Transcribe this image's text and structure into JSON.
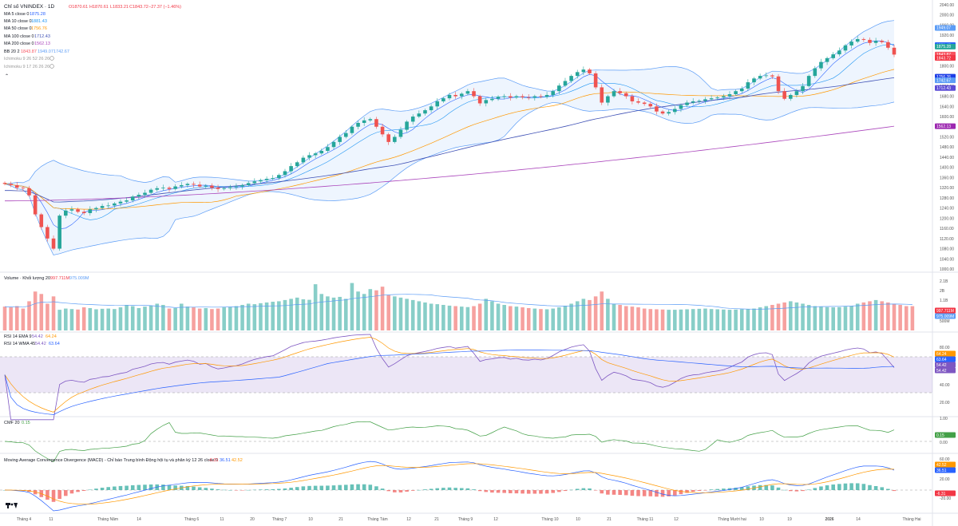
{
  "header": {
    "symbol_title": "Chỉ số VNINDEX · 1D",
    "ohlc": [
      "O1870.61",
      "H1870.61",
      "L1833.21",
      "C1843.72",
      "−27.37 (−1.46%)"
    ]
  },
  "legend": {
    "ma5": {
      "label": "MA 5 close 0",
      "value": "1875.28"
    },
    "ma10": {
      "label": "MA 10 close 0",
      "value": "1881.43"
    },
    "ma50": {
      "label": "MA 50 close 0",
      "value": "1756.76"
    },
    "ma100": {
      "label": "MA 100 close 0",
      "value": "1712.43"
    },
    "ma200": {
      "label": "MA 200 close 0",
      "value": "1562.13"
    },
    "bb": {
      "label": "BB 20 2",
      "v1": "1843.87",
      "v2": "1949.07",
      "v3": "1742.67"
    },
    "ichimoku1": "Ichimoku 9 26 52 26 26",
    "ichimoku2": "Ichimoku 9 17 26 26 26"
  },
  "volume_pane": {
    "label": "Volume · Khối lượng 20",
    "v1": "997.711M",
    "v2": "975.009M"
  },
  "rsi_pane": {
    "line1_label": "RSI 14 EMA 9",
    "line1_v1": "54.42",
    "line1_v2": "64.24",
    "line2_label": "RSI 14 WMA 45",
    "line2_v1": "54.42",
    "line2_v2": "63.64"
  },
  "cmf_pane": {
    "label": "CMF 20",
    "value": "0.15"
  },
  "macd_pane": {
    "label": "Moving Average Convergence Divergence (MACD) - Chỉ báo Trung bình Động hội tụ và phân kỳ 12 26 close 9",
    "v1": "-6.31",
    "v2": "36.51",
    "v3": "42.52"
  },
  "price_axis": [
    "2040.00",
    "2000.00",
    "1960.00",
    "1920.00",
    "1880.00",
    "1840.00",
    "1800.00",
    "1760.00",
    "1720.00",
    "1680.00",
    "1640.00",
    "1600.00",
    "1560.00",
    "1520.00",
    "1480.00",
    "1440.00",
    "1400.00",
    "1360.00",
    "1320.00",
    "1280.00",
    "1240.00",
    "1200.00",
    "1160.00",
    "1120.00",
    "1080.00",
    "1040.00",
    "1000.00"
  ],
  "price_tags": [
    {
      "value": "1949.07",
      "color": "#5b9cf6"
    },
    {
      "value": "1881.43",
      "color": "#2962ff"
    },
    {
      "value": "1875.28",
      "color": "#26a69a"
    },
    {
      "value": "1843.87",
      "color": "#f7525f"
    },
    {
      "value": "1843.72",
      "color": "#f23645"
    },
    {
      "value": "1756.76",
      "color": "#1e3ee6"
    },
    {
      "value": "1742.67",
      "color": "#5b9cf6"
    },
    {
      "value": "1712.43",
      "color": "#5b4bd6"
    },
    {
      "value": "1562.13",
      "color": "#9c27b0"
    }
  ],
  "volume_axis": [
    "2.1B",
    "2B",
    "1.1B",
    "500M"
  ],
  "volume_tags": [
    {
      "value": "997.711M",
      "color": "#f23645"
    },
    {
      "value": "975.009M",
      "color": "#5b9cf6"
    }
  ],
  "rsi_axis": [
    "80.00",
    "60.00",
    "40.00",
    "20.00"
  ],
  "rsi_tags": [
    {
      "value": "64.24",
      "color": "#ff9800"
    },
    {
      "value": "63.64",
      "color": "#2962ff"
    },
    {
      "value": "54.42",
      "color": "#7e57c2"
    },
    {
      "value": "54.42",
      "color": "#7e57c2"
    }
  ],
  "cmf_axis": [
    "1.00",
    "0.00"
  ],
  "cmf_tag": {
    "value": "0.15",
    "color": "#43a047"
  },
  "macd_axis": [
    "60.00",
    "40.00",
    "20.00",
    "-20.00"
  ],
  "macd_tags": [
    {
      "value": "42.52",
      "color": "#ff9800"
    },
    {
      "value": "36.51",
      "color": "#2962ff"
    },
    {
      "value": "-6.31",
      "color": "#f23645"
    }
  ],
  "time_axis": [
    "Tháng 4",
    "11",
    "Tháng Năm",
    "14",
    "Tháng 6",
    "11",
    "20",
    "Tháng 7",
    "10",
    "21",
    "Tháng Tám",
    "12",
    "21",
    "Tháng 9",
    "12",
    "Tháng 10",
    "10",
    "21",
    "Tháng 11",
    "12",
    "Tháng Mười hai",
    "10",
    "19",
    "2026",
    "14",
    "Tháng Hai"
  ],
  "colors": {
    "up": "#26a69a",
    "down": "#ef5350",
    "ma5": "#2962ff",
    "ma10": "#2196f3",
    "ma50": "#ff9800",
    "ma100": "#3f51b5",
    "ma200": "#ab47bc",
    "bb": "#5b9cf6",
    "rsi_band": "#7e57c2",
    "cmf": "#43a047",
    "macd": "#2962ff",
    "signal": "#ff9800"
  },
  "chart_data": [
    {
      "type": "candlestick",
      "title": "Chỉ số VNINDEX · 1D",
      "ylim": [
        1000,
        2040
      ],
      "close": [
        1335,
        1330,
        1320,
        1318,
        1290,
        1215,
        1165,
        1120,
        1080,
        1210,
        1230,
        1235,
        1225,
        1220,
        1235,
        1240,
        1248,
        1250,
        1258,
        1265,
        1270,
        1285,
        1292,
        1300,
        1312,
        1318,
        1320,
        1315,
        1325,
        1330,
        1335,
        1332,
        1325,
        1328,
        1320,
        1315,
        1318,
        1322,
        1325,
        1330,
        1338,
        1345,
        1350,
        1355,
        1358,
        1370,
        1385,
        1405,
        1420,
        1438,
        1448,
        1455,
        1465,
        1480,
        1500,
        1520,
        1535,
        1560,
        1575,
        1585,
        1590,
        1560,
        1530,
        1500,
        1520,
        1548,
        1580,
        1600,
        1612,
        1625,
        1640,
        1660,
        1672,
        1685,
        1680,
        1690,
        1700,
        1680,
        1652,
        1665,
        1670,
        1678,
        1680,
        1675,
        1680,
        1676,
        1675,
        1680,
        1678,
        1685,
        1700,
        1722,
        1740,
        1760,
        1775,
        1785,
        1770,
        1715,
        1655,
        1680,
        1700,
        1692,
        1680,
        1660,
        1655,
        1650,
        1640,
        1620,
        1612,
        1618,
        1630,
        1645,
        1655,
        1660,
        1662,
        1668,
        1672,
        1675,
        1680,
        1688,
        1700,
        1710,
        1735,
        1750,
        1760,
        1762,
        1758,
        1700,
        1670,
        1685,
        1700,
        1720,
        1760,
        1790,
        1815,
        1830,
        1845,
        1860,
        1880,
        1895,
        1905,
        1902,
        1890,
        1898,
        1893,
        1871,
        1844
      ],
      "volume_millions": [
        980,
        950,
        1000,
        900,
        1200,
        1600,
        1500,
        1100,
        1400,
        850,
        900,
        880,
        860,
        950,
        920,
        870,
        890,
        900,
        880,
        950,
        1050,
        1000,
        920,
        980,
        1020,
        1100,
        1050,
        900,
        920,
        1100,
        980,
        950,
        900,
        920,
        880,
        900,
        950,
        970,
        1000,
        1050,
        1100,
        1080,
        1120,
        1150,
        1180,
        1200,
        1250,
        1300,
        1350,
        1280,
        1260,
        1900,
        1500,
        1400,
        1350,
        1380,
        1300,
        1950,
        1600,
        1500,
        1700,
        1650,
        1800,
        1450,
        1400,
        1350,
        1300,
        1250,
        1200,
        1150,
        1100,
        1080,
        1050,
        1020,
        1000,
        980,
        960,
        1000,
        1100,
        1300,
        1200,
        1100,
        1050,
        1000,
        980,
        950,
        920,
        900,
        880,
        870,
        900,
        950,
        1000,
        1100,
        1200,
        1300,
        1250,
        1400,
        1600,
        1300,
        1100,
        1050,
        1000,
        980,
        950,
        900,
        880,
        870,
        860,
        850,
        850,
        860,
        870,
        880,
        890,
        900,
        880,
        870,
        860,
        850,
        860,
        870,
        880,
        900,
        950,
        1000,
        1050,
        1100,
        1150,
        1200,
        1150,
        1100,
        1050,
        1000,
        980,
        960,
        950,
        960,
        980,
        1000,
        1100,
        1150,
        1200,
        1250,
        1200,
        1150,
        1100,
        1050,
        1000,
        998
      ]
    }
  ]
}
